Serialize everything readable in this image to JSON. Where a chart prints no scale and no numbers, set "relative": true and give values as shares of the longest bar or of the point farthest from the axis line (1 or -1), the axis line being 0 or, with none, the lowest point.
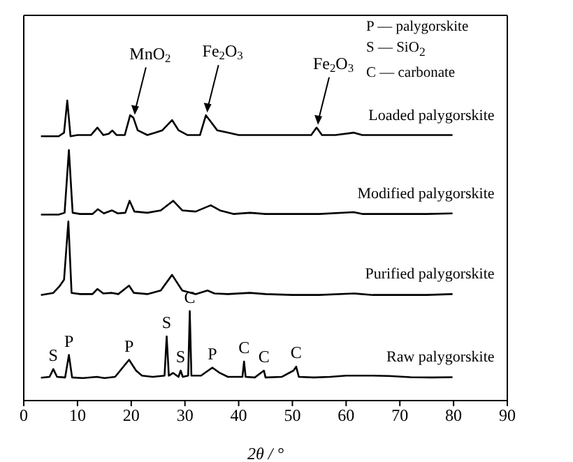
{
  "chart_data": {
    "type": "line",
    "relative": true,
    "xlabel": "2θ / °",
    "xlim": [
      0,
      90
    ],
    "xticks": [
      0,
      10,
      20,
      30,
      40,
      50,
      60,
      70,
      80,
      90
    ],
    "legend": false,
    "grid": false,
    "marker": "none",
    "line_style": "solid",
    "series": [
      {
        "name": "Loaded palygorskite",
        "color": "#000000",
        "x": [
          3.2,
          6.5,
          7.5,
          8.1,
          8.7,
          10,
          12.5,
          13.7,
          14.8,
          15.8,
          16.5,
          17.3,
          18.8,
          19.8,
          20.4,
          21.2,
          23,
          24.5,
          25.8,
          27.6,
          28.8,
          30.5,
          32.8,
          33.9,
          34.7,
          36,
          38,
          40,
          45,
          50,
          53.5,
          54.5,
          55.5,
          58,
          61.4,
          63,
          68,
          72,
          76,
          79.8
        ],
        "values": [
          0.881,
          0.881,
          0.893,
          1,
          0.881,
          0.885,
          0.885,
          0.91,
          0.885,
          0.889,
          0.9,
          0.885,
          0.885,
          0.951,
          0.943,
          0.901,
          0.885,
          0.893,
          0.901,
          0.935,
          0.901,
          0.885,
          0.885,
          0.951,
          0.932,
          0.901,
          0.893,
          0.885,
          0.885,
          0.885,
          0.885,
          0.91,
          0.885,
          0.885,
          0.893,
          0.885,
          0.885,
          0.885,
          0.885,
          0.885
        ]
      },
      {
        "name": "Modified palygorskite",
        "color": "#000000",
        "x": [
          3.2,
          6.5,
          7.6,
          8.4,
          9.1,
          10.5,
          12.8,
          13.8,
          14.9,
          16.4,
          17.5,
          18.9,
          19.7,
          20.6,
          23,
          25.5,
          27.8,
          29.5,
          32,
          34.8,
          36.5,
          39,
          42.1,
          45,
          50,
          55,
          61.4,
          63,
          70,
          75,
          79.8
        ],
        "values": [
          0.62,
          0.62,
          0.626,
          0.835,
          0.626,
          0.622,
          0.622,
          0.638,
          0.624,
          0.634,
          0.624,
          0.626,
          0.666,
          0.63,
          0.626,
          0.634,
          0.666,
          0.634,
          0.63,
          0.651,
          0.634,
          0.622,
          0.626,
          0.622,
          0.622,
          0.622,
          0.628,
          0.622,
          0.622,
          0.622,
          0.624
        ]
      },
      {
        "name": "Purified palygorskite",
        "color": "#000000",
        "x": [
          3.2,
          5.5,
          6.6,
          7.5,
          8.3,
          8.9,
          10.5,
          12.8,
          13.7,
          14.8,
          16.4,
          17.6,
          19.6,
          20.5,
          23,
          25.5,
          27.6,
          29.5,
          32,
          34.2,
          35.5,
          38,
          42.1,
          45,
          50,
          55,
          61.5,
          65,
          70,
          75,
          79.8
        ],
        "values": [
          0.352,
          0.359,
          0.38,
          0.403,
          0.597,
          0.359,
          0.355,
          0.355,
          0.372,
          0.357,
          0.359,
          0.355,
          0.383,
          0.359,
          0.355,
          0.367,
          0.419,
          0.367,
          0.355,
          0.367,
          0.357,
          0.355,
          0.359,
          0.355,
          0.352,
          0.352,
          0.357,
          0.352,
          0.352,
          0.352,
          0.355
        ]
      },
      {
        "name": "Raw palygorskite",
        "color": "#000000",
        "x": [
          3.2,
          4.8,
          5.5,
          6.2,
          7.7,
          8.4,
          9,
          11,
          13.6,
          15,
          17,
          19.6,
          20.9,
          22,
          24,
          26.2,
          26.6,
          27,
          27.8,
          28.8,
          29.2,
          29.6,
          30.6,
          30.9,
          31.2,
          33,
          35.1,
          36.5,
          38,
          40.7,
          41,
          41.3,
          43,
          44.7,
          45,
          48,
          50.2,
          50.7,
          51.2,
          54,
          57,
          60,
          62,
          65,
          68,
          72,
          76,
          79.8
        ],
        "values": [
          0.076,
          0.079,
          0.105,
          0.079,
          0.077,
          0.152,
          0.077,
          0.075,
          0.079,
          0.075,
          0.079,
          0.136,
          0.1,
          0.083,
          0.079,
          0.083,
          0.214,
          0.083,
          0.092,
          0.079,
          0.1,
          0.079,
          0.083,
          0.298,
          0.083,
          0.083,
          0.11,
          0.092,
          0.079,
          0.079,
          0.13,
          0.079,
          0.077,
          0.1,
          0.077,
          0.079,
          0.1,
          0.113,
          0.079,
          0.077,
          0.079,
          0.083,
          0.083,
          0.083,
          0.082,
          0.078,
          0.077,
          0.078
        ]
      }
    ],
    "annotations": [
      "P — palygorskite",
      "S — SiO$_{2}$",
      "C — carbonate",
      {
        "text": "MnO$_{2}$",
        "x": 20.4,
        "y": 0.943
      },
      {
        "text": "Fe$_{2}$O$_{3}$",
        "x": 33.9,
        "y": 0.951
      },
      {
        "text": "Fe$_{2}$O$_{3}$",
        "x": 54.5,
        "y": 0.91
      },
      {
        "text": "S",
        "x": 5.5,
        "y": 0.105
      },
      {
        "text": "P",
        "x": 8.4,
        "y": 0.152
      },
      {
        "text": "P",
        "x": 19.6,
        "y": 0.136
      },
      {
        "text": "S",
        "x": 26.6,
        "y": 0.214
      },
      {
        "text": "S",
        "x": 29.2,
        "y": 0.1
      },
      {
        "text": "C",
        "x": 30.9,
        "y": 0.298
      },
      {
        "text": "P",
        "x": 35.1,
        "y": 0.11
      },
      {
        "text": "C",
        "x": 41,
        "y": 0.13
      },
      {
        "text": "C",
        "x": 44.7,
        "y": 0.1
      },
      {
        "text": "C",
        "x": 50.7,
        "y": 0.113
      }
    ]
  }
}
